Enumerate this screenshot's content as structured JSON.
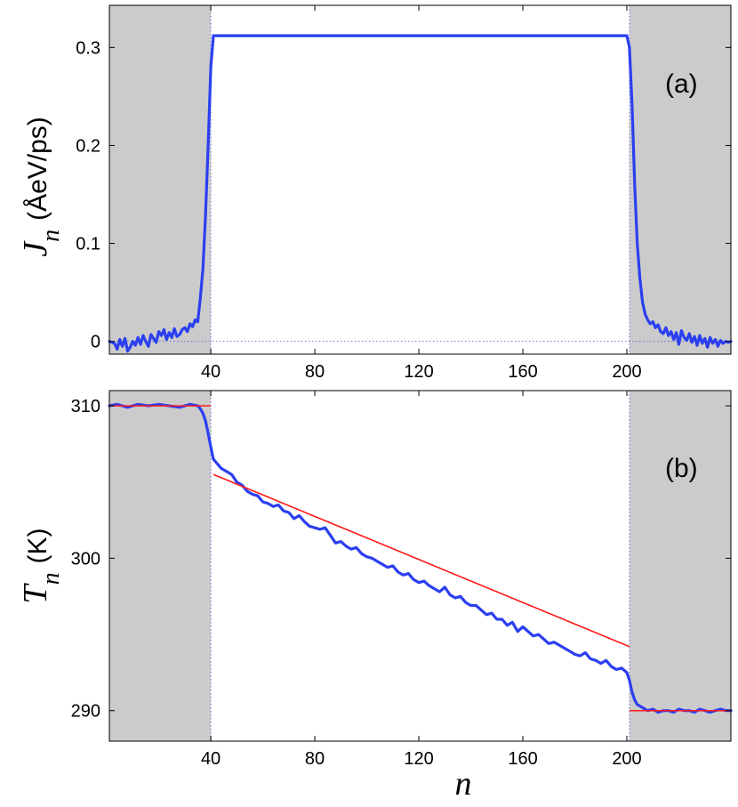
{
  "chart_data": [
    {
      "type": "line",
      "panel_label": "(a)",
      "ylabel": {
        "symbol": "J",
        "subscript": "n",
        "unit": "(ÅeV/ps)"
      },
      "xlabel": "",
      "xlim": [
        1,
        240
      ],
      "ylim": [
        -0.013,
        0.343
      ],
      "xticks": [
        40,
        80,
        120,
        160,
        200
      ],
      "xtick_labels": [
        "40",
        "80",
        "120",
        "160",
        "200"
      ],
      "yticks": [
        0,
        0.1,
        0.2,
        0.3
      ],
      "ytick_labels": [
        "0",
        "0.1",
        "0.2",
        "0.3"
      ],
      "shaded_regions": [
        [
          1,
          40
        ],
        [
          201,
          240
        ]
      ],
      "reference_lines": {
        "vertical": [
          40,
          201
        ],
        "horizontal": [
          0
        ]
      },
      "colors": {
        "series": "#2b3ff0",
        "shade": "#cbcbcb",
        "reference": "#6f6fd6"
      },
      "series": [
        {
          "x": [
            1,
            3,
            4,
            5,
            6,
            7,
            8,
            9,
            10,
            11,
            12,
            13,
            14,
            15,
            16,
            17,
            18,
            19,
            20,
            21,
            22,
            23,
            24,
            25,
            26,
            27,
            28,
            29,
            30,
            31,
            32,
            33,
            34,
            35,
            36,
            37,
            38,
            39,
            40,
            41,
            42,
            60,
            100,
            140,
            180,
            199,
            200,
            201,
            202,
            203,
            204,
            205,
            206,
            207,
            208,
            209,
            210,
            211,
            212,
            213,
            214,
            215,
            216,
            217,
            218,
            219,
            220,
            221,
            222,
            223,
            224,
            225,
            226,
            227,
            228,
            229,
            230,
            231,
            232,
            233,
            234,
            235,
            236,
            237,
            238,
            239,
            240
          ],
          "y": [
            0.0,
            -0.002,
            -0.008,
            0.002,
            -0.005,
            0.003,
            -0.01,
            -0.006,
            0.0,
            -0.004,
            0.004,
            -0.003,
            0.006,
            0.0,
            -0.005,
            0.007,
            0.003,
            -0.001,
            0.01,
            0.006,
            0.012,
            0.002,
            0.009,
            0.004,
            0.013,
            0.005,
            0.007,
            0.012,
            0.014,
            0.01,
            0.018,
            0.015,
            0.022,
            0.02,
            0.045,
            0.075,
            0.13,
            0.2,
            0.28,
            0.312,
            0.312,
            0.312,
            0.312,
            0.312,
            0.312,
            0.312,
            0.312,
            0.3,
            0.24,
            0.16,
            0.1,
            0.065,
            0.04,
            0.028,
            0.022,
            0.018,
            0.02,
            0.014,
            0.017,
            0.01,
            0.008,
            0.014,
            0.006,
            0.01,
            0.002,
            0.009,
            -0.003,
            0.011,
            0.004,
            0.001,
            0.008,
            -0.001,
            0.005,
            -0.004,
            0.006,
            -0.002,
            0.003,
            -0.006,
            0.004,
            -0.002,
            0.002,
            -0.005,
            0.001,
            -0.002,
            0.0,
            -0.001,
            0.0
          ]
        }
      ]
    },
    {
      "type": "line",
      "panel_label": "(b)",
      "ylabel": {
        "symbol": "T",
        "subscript": "n",
        "unit": "(K)"
      },
      "xlabel": "n",
      "xlim": [
        1,
        240
      ],
      "ylim": [
        288,
        311
      ],
      "xticks": [
        40,
        80,
        120,
        160,
        200
      ],
      "xtick_labels": [
        "40",
        "80",
        "120",
        "160",
        "200"
      ],
      "yticks": [
        290,
        300,
        310
      ],
      "ytick_labels": [
        "290",
        "300",
        "310"
      ],
      "shaded_regions": [
        [
          1,
          40
        ],
        [
          201,
          240
        ]
      ],
      "reference_lines": {
        "vertical": [
          40,
          201
        ]
      },
      "colors": {
        "series": "#2b3ff0",
        "fit": "#ff1a1a",
        "shade": "#cbcbcb",
        "reference": "#6f6fd6"
      },
      "series": [
        {
          "x": [
            1,
            4,
            8,
            12,
            16,
            20,
            24,
            28,
            32,
            35,
            36,
            37,
            38,
            39,
            40,
            41,
            42,
            44,
            46,
            48,
            50,
            52,
            54,
            56,
            58,
            60,
            62,
            64,
            66,
            68,
            70,
            72,
            74,
            76,
            78,
            80,
            82,
            84,
            86,
            88,
            90,
            92,
            94,
            96,
            98,
            100,
            102,
            104,
            106,
            108,
            110,
            112,
            114,
            116,
            118,
            120,
            122,
            124,
            126,
            128,
            130,
            132,
            134,
            136,
            138,
            140,
            142,
            144,
            146,
            148,
            150,
            152,
            154,
            156,
            158,
            160,
            162,
            164,
            166,
            168,
            170,
            172,
            174,
            176,
            178,
            180,
            182,
            184,
            186,
            188,
            190,
            192,
            194,
            196,
            198,
            200,
            201,
            202,
            203,
            204,
            206,
            208,
            210,
            212,
            214,
            216,
            218,
            220,
            222,
            224,
            226,
            228,
            230,
            232,
            234,
            236,
            238,
            240
          ],
          "y": [
            310.0,
            310.1,
            309.9,
            310.1,
            310.0,
            310.1,
            310.0,
            309.9,
            310.1,
            310.0,
            309.8,
            309.5,
            309.0,
            308.2,
            307.3,
            306.5,
            306.3,
            305.9,
            305.7,
            305.5,
            305.0,
            304.8,
            304.4,
            304.2,
            304.1,
            303.7,
            303.6,
            303.4,
            303.5,
            303.1,
            303.0,
            302.6,
            302.8,
            302.4,
            302.1,
            302.0,
            301.9,
            302.0,
            301.5,
            301.0,
            301.1,
            300.8,
            300.6,
            300.7,
            300.3,
            300.1,
            300.0,
            299.8,
            299.6,
            299.4,
            299.5,
            299.1,
            298.9,
            299.0,
            298.6,
            298.4,
            298.5,
            298.2,
            298.0,
            297.8,
            298.1,
            297.6,
            297.4,
            297.5,
            297.1,
            296.9,
            296.9,
            296.6,
            296.3,
            296.4,
            296.0,
            296.0,
            295.6,
            295.8,
            295.2,
            295.5,
            295.2,
            294.9,
            295.0,
            294.7,
            294.4,
            294.5,
            294.3,
            294.1,
            293.9,
            293.7,
            293.6,
            293.8,
            293.4,
            293.3,
            293.1,
            293.3,
            292.9,
            292.7,
            292.8,
            292.5,
            292.0,
            291.2,
            290.7,
            290.4,
            290.2,
            290.0,
            290.1,
            289.9,
            290.0,
            290.0,
            289.9,
            290.1,
            290.0,
            290.0,
            289.9,
            290.1,
            290.0,
            289.9,
            290.0,
            290.1,
            290.0,
            290.0
          ]
        }
      ],
      "fit_lines": [
        {
          "x": [
            1,
            40
          ],
          "y": [
            310,
            310
          ]
        },
        {
          "x": [
            41,
            201
          ],
          "y": [
            305.5,
            294.2
          ]
        },
        {
          "x": [
            201,
            240
          ],
          "y": [
            290,
            290
          ]
        }
      ]
    }
  ]
}
